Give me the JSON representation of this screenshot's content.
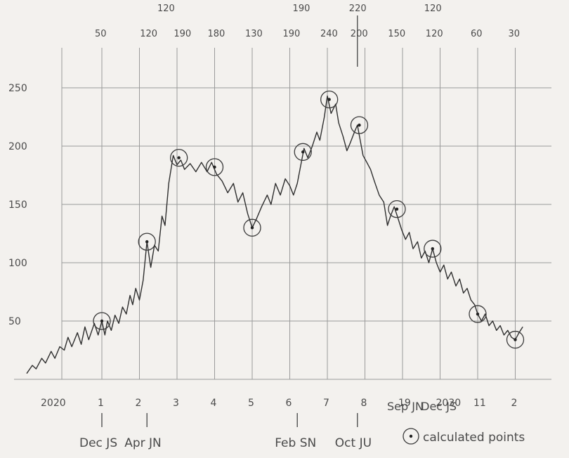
{
  "chart_data": {
    "type": "line",
    "title": "",
    "xlabel": "",
    "ylabel": "",
    "ylim": [
      0,
      250
    ],
    "grid": true,
    "y_ticks": [
      {
        "value": 50,
        "label": "50"
      },
      {
        "value": 100,
        "label": "100"
      },
      {
        "value": 150,
        "label": "150"
      },
      {
        "value": 200,
        "label": "200"
      },
      {
        "value": 250,
        "label": "250"
      }
    ],
    "x_ticks": [
      {
        "x": 1,
        "label": "1"
      },
      {
        "x": 2,
        "label": "2"
      },
      {
        "x": 3,
        "label": "3"
      },
      {
        "x": 4,
        "label": "4"
      },
      {
        "x": 5,
        "label": "5"
      },
      {
        "x": 6,
        "label": "6"
      },
      {
        "x": 7,
        "label": "7"
      },
      {
        "x": 8,
        "label": "8"
      },
      {
        "x": 9,
        "label": "19"
      },
      {
        "x": 10,
        "label": "2030"
      },
      {
        "x": 11,
        "label": "11"
      },
      {
        "x": 12,
        "label": "2"
      }
    ],
    "x_start_label": "2020",
    "top_labels": [
      {
        "x": 1,
        "label": "50"
      },
      {
        "x": 2.2,
        "label": "120"
      },
      {
        "x": 3.1,
        "label": "190"
      },
      {
        "x": 4,
        "label": "180"
      },
      {
        "x": 5,
        "label": "130"
      },
      {
        "x": 6,
        "label": "190"
      },
      {
        "x": 7,
        "label": "240"
      },
      {
        "x": 7.8,
        "label": "200"
      },
      {
        "x": 8.8,
        "label": "150"
      },
      {
        "x": 9.8,
        "label": "120"
      },
      {
        "x": 11,
        "label": "60"
      },
      {
        "x": 12,
        "label": "30"
      }
    ],
    "upper_labels": [
      {
        "x": 2.7,
        "label": "120"
      },
      {
        "x": 6.3,
        "label": "190"
      },
      {
        "x": 7.8,
        "label": "220"
      },
      {
        "x": 9.8,
        "label": "120"
      }
    ],
    "series": [
      {
        "values": [
          [
            -1,
            5
          ],
          [
            -0.85,
            12
          ],
          [
            -0.75,
            9
          ],
          [
            -0.6,
            18
          ],
          [
            -0.5,
            14
          ],
          [
            -0.35,
            24
          ],
          [
            -0.25,
            18
          ],
          [
            -0.12,
            28
          ],
          [
            0,
            25
          ],
          [
            0.1,
            36
          ],
          [
            0.2,
            28
          ],
          [
            0.35,
            40
          ],
          [
            0.45,
            30
          ],
          [
            0.55,
            45
          ],
          [
            0.65,
            34
          ],
          [
            0.8,
            48
          ],
          [
            0.9,
            38
          ],
          [
            1,
            50
          ],
          [
            1.08,
            38
          ],
          [
            1.15,
            50
          ],
          [
            1.25,
            42
          ],
          [
            1.35,
            55
          ],
          [
            1.45,
            48
          ],
          [
            1.55,
            62
          ],
          [
            1.65,
            56
          ],
          [
            1.75,
            72
          ],
          [
            1.82,
            64
          ],
          [
            1.9,
            78
          ],
          [
            2,
            68
          ],
          [
            2.1,
            85
          ],
          [
            2.2,
            118
          ],
          [
            2.3,
            96
          ],
          [
            2.4,
            115
          ],
          [
            2.5,
            110
          ],
          [
            2.6,
            140
          ],
          [
            2.68,
            132
          ],
          [
            2.78,
            168
          ],
          [
            2.9,
            192
          ],
          [
            3,
            184
          ],
          [
            3.1,
            188
          ],
          [
            3.2,
            180
          ],
          [
            3.35,
            185
          ],
          [
            3.5,
            178
          ],
          [
            3.65,
            186
          ],
          [
            3.8,
            178
          ],
          [
            3.92,
            186
          ],
          [
            4.05,
            176
          ],
          [
            4.2,
            170
          ],
          [
            4.35,
            160
          ],
          [
            4.5,
            168
          ],
          [
            4.62,
            152
          ],
          [
            4.75,
            160
          ],
          [
            4.88,
            142
          ],
          [
            5,
            130
          ],
          [
            5.12,
            138
          ],
          [
            5.25,
            148
          ],
          [
            5.4,
            158
          ],
          [
            5.5,
            150
          ],
          [
            5.62,
            168
          ],
          [
            5.75,
            158
          ],
          [
            5.88,
            172
          ],
          [
            6,
            166
          ],
          [
            6.1,
            158
          ],
          [
            6.2,
            168
          ],
          [
            6.3,
            185
          ],
          [
            6.38,
            198
          ],
          [
            6.48,
            190
          ],
          [
            6.6,
            200
          ],
          [
            6.72,
            212
          ],
          [
            6.8,
            205
          ],
          [
            6.92,
            225
          ],
          [
            7,
            243
          ],
          [
            7.1,
            228
          ],
          [
            7.22,
            236
          ],
          [
            7.3,
            220
          ],
          [
            7.42,
            208
          ],
          [
            7.52,
            196
          ],
          [
            7.6,
            202
          ],
          [
            7.72,
            212
          ],
          [
            7.8,
            218
          ],
          [
            7.88,
            204
          ],
          [
            7.95,
            192
          ],
          [
            8.05,
            186
          ],
          [
            8.15,
            180
          ],
          [
            8.25,
            170
          ],
          [
            8.38,
            158
          ],
          [
            8.5,
            152
          ],
          [
            8.6,
            132
          ],
          [
            8.68,
            140
          ],
          [
            8.78,
            148
          ],
          [
            8.88,
            138
          ],
          [
            8.98,
            128
          ],
          [
            9.08,
            120
          ],
          [
            9.18,
            126
          ],
          [
            9.28,
            112
          ],
          [
            9.4,
            118
          ],
          [
            9.5,
            104
          ],
          [
            9.6,
            110
          ],
          [
            9.7,
            100
          ],
          [
            9.8,
            112
          ],
          [
            9.9,
            100
          ],
          [
            10,
            92
          ],
          [
            10.1,
            98
          ],
          [
            10.2,
            86
          ],
          [
            10.3,
            92
          ],
          [
            10.42,
            80
          ],
          [
            10.52,
            86
          ],
          [
            10.62,
            74
          ],
          [
            10.72,
            78
          ],
          [
            10.82,
            68
          ],
          [
            10.92,
            64
          ],
          [
            11,
            56
          ],
          [
            11.1,
            50
          ],
          [
            11.2,
            56
          ],
          [
            11.3,
            46
          ],
          [
            11.4,
            50
          ],
          [
            11.5,
            42
          ],
          [
            11.6,
            46
          ],
          [
            11.7,
            38
          ],
          [
            11.8,
            42
          ],
          [
            11.9,
            36
          ],
          [
            12,
            34
          ],
          [
            12.1,
            40
          ],
          [
            12.2,
            45
          ]
        ]
      }
    ],
    "calculated_points": [
      {
        "x": 1,
        "y": 50
      },
      {
        "x": 2.2,
        "y": 118
      },
      {
        "x": 3.05,
        "y": 190
      },
      {
        "x": 4,
        "y": 182
      },
      {
        "x": 5,
        "y": 130
      },
      {
        "x": 6.35,
        "y": 195
      },
      {
        "x": 7.05,
        "y": 240
      },
      {
        "x": 7.85,
        "y": 218
      },
      {
        "x": 8.85,
        "y": 146
      },
      {
        "x": 9.8,
        "y": 112
      },
      {
        "x": 11,
        "y": 56
      },
      {
        "x": 12,
        "y": 34
      }
    ],
    "annotations": [
      {
        "x": 1,
        "label": "Dec JS"
      },
      {
        "x": 2.2,
        "label": "Apr JN"
      },
      {
        "x": 6.2,
        "label": "Feb SN"
      },
      {
        "x": 7.8,
        "label": "Oct JU"
      },
      {
        "x": 9,
        "label": "Sep JN"
      },
      {
        "x": 9.9,
        "label": "Dec JS"
      }
    ],
    "legend": {
      "symbol": "circled-dot",
      "label": "calculated points"
    }
  }
}
